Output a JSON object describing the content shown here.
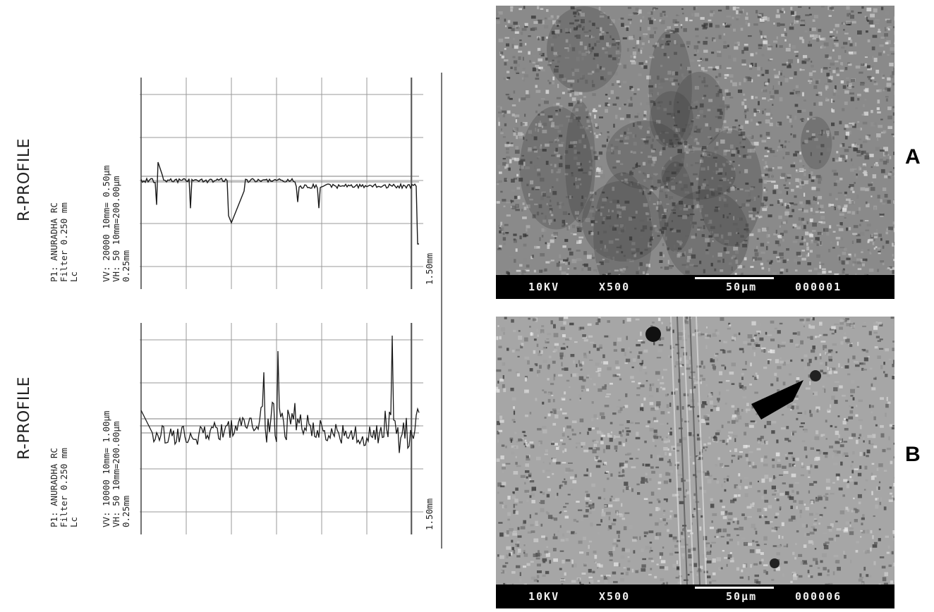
{
  "profile_a": {
    "title": "R-PROFILE",
    "meta_line1": "P1: ANURADHA      RC",
    "meta_line2": "Filter         0.250 mm",
    "meta_line3": "Lc",
    "meta_line4": "VV:   20000  10mm= 0.50µm",
    "meta_line5": "VH:      50  10mm=200.00µm",
    "x_start": "0.25mm",
    "x_end": "1.50mm"
  },
  "profile_b": {
    "title": "R-PROFILE",
    "meta_line1": "P1: ANURADHA      RC",
    "meta_line2": "Filter         0.250 mm",
    "meta_line3": "Lc",
    "meta_line4": "VV:   10000  10mm= 1.00µm",
    "meta_line5": "VH:      50  10mm=200.00µm",
    "x_start": "0.25mm",
    "x_end": "1.50mm"
  },
  "sem_a": {
    "voltage": "10KV",
    "magnification": "X500",
    "scale": "50µm",
    "image_id": "000001",
    "label": "A"
  },
  "sem_b": {
    "voltage": "10KV",
    "magnification": "X500",
    "scale": "50µm",
    "image_id": "000006",
    "label": "B"
  },
  "colors": {
    "trace": "#1a1a1a",
    "grid": "#9a9a9a",
    "sem_bar": "#000000"
  }
}
